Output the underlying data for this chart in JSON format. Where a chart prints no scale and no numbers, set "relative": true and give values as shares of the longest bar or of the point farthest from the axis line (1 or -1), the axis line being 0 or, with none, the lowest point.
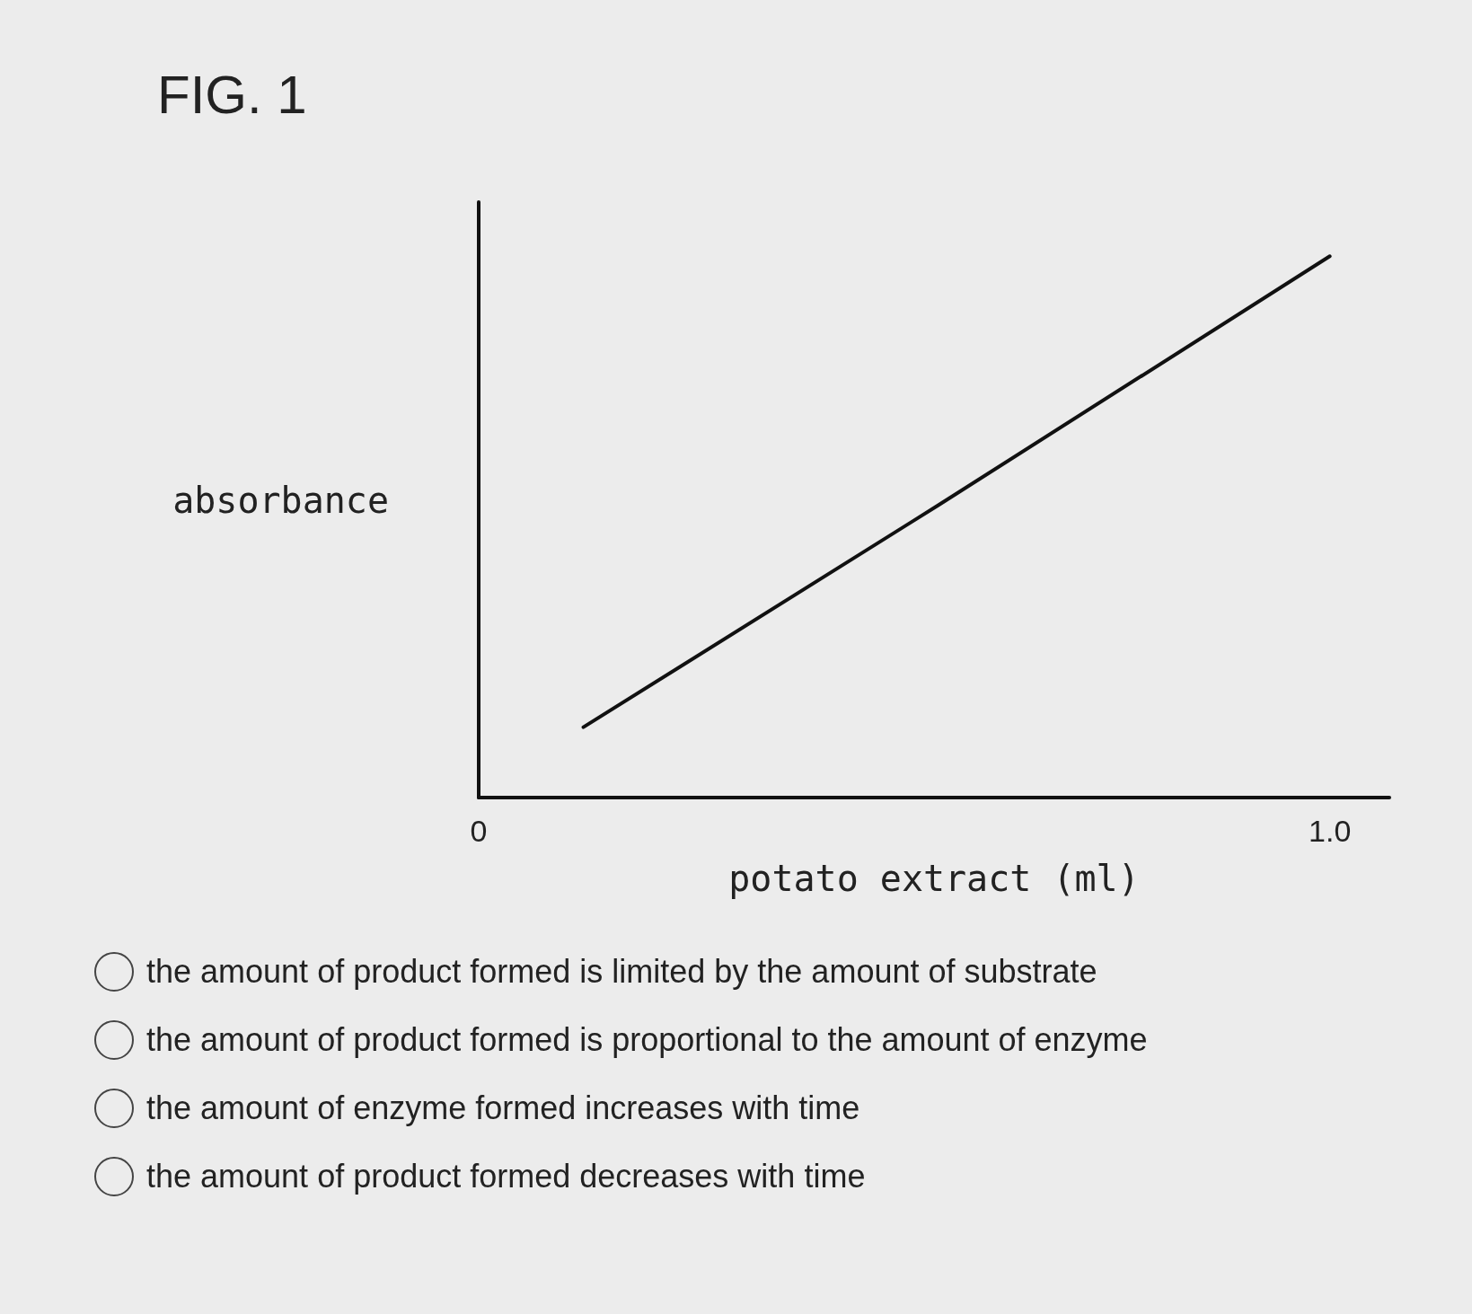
{
  "chart_data": {
    "type": "line",
    "title": "FIG. 1",
    "xlabel": "potato extract (ml)",
    "ylabel": "absorbance",
    "relative": true,
    "x": [
      0.123,
      0.54,
      1.0
    ],
    "series": [
      {
        "color": "#111111",
        "values": [
          0.13,
          0.54,
          1
        ]
      }
    ],
    "xlim": [
      0,
      1.07
    ],
    "xticks": [
      0,
      {
        "value": 1,
        "label": "1.0"
      }
    ],
    "grid": false,
    "marker": "none",
    "line_style": "solid",
    "annotations": [
      "the amount of product formed is limited by the amount of substrate",
      "the amount of product formed is proportional to the amount of enzyme",
      "the amount of enzyme formed increases with time",
      "the amount of product formed decreases with time"
    ]
  }
}
